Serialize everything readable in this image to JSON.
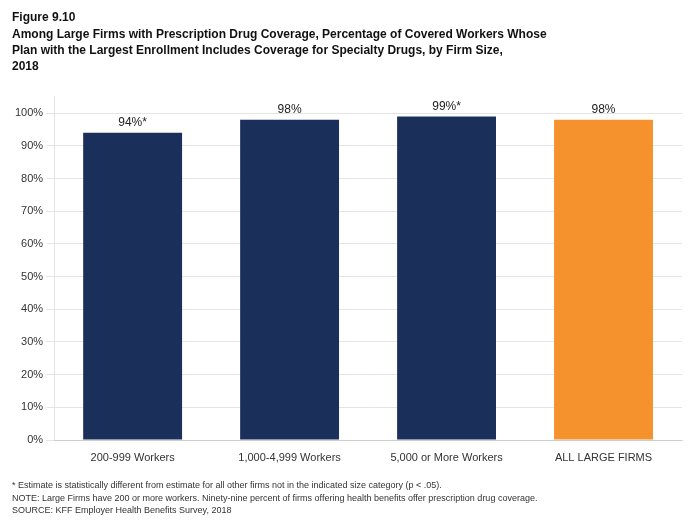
{
  "chart_data": {
    "type": "bar",
    "title": [
      "Figure 9.10",
      "Among Large Firms with Prescription Drug Coverage, Percentage of Covered Workers Whose",
      "Plan with the Largest Enrollment Includes Coverage for Specialty Drugs, by Firm Size,",
      "2018"
    ],
    "categories": [
      "200-999 Workers",
      "1,000-4,999 Workers",
      "5,000 or More Workers",
      "ALL LARGE FIRMS"
    ],
    "values": [
      94,
      98,
      99,
      98
    ],
    "value_labels": [
      "94%*",
      "98%",
      "99%*",
      "98%"
    ],
    "colors": [
      "#1b2f5b",
      "#1b2f5b",
      "#1b2f5b",
      "#f5922e"
    ],
    "ylim": [
      0,
      105
    ],
    "yticks": [
      {
        "value": 0,
        "label": "0%"
      },
      {
        "value": 10,
        "label": "10%"
      },
      {
        "value": 20,
        "label": "20%"
      },
      {
        "value": 30,
        "label": "30%"
      },
      {
        "value": 40,
        "label": "40%"
      },
      {
        "value": 50,
        "label": "50%"
      },
      {
        "value": 60,
        "label": "60%"
      },
      {
        "value": 70,
        "label": "70%"
      },
      {
        "value": 80,
        "label": "80%"
      },
      {
        "value": 90,
        "label": "90%"
      },
      {
        "value": 100,
        "label": "100%"
      }
    ],
    "grid": "y",
    "annotations": [
      "* Estimate is statistically different from estimate for all other firms not in the indicated size category (p < .05).",
      "NOTE: Large Firms have 200 or more workers. Ninety-nine percent of firms offering health benefits offer prescription drug coverage.",
      "SOURCE: KFF Employer Health Benefits Survey, 2018"
    ]
  }
}
